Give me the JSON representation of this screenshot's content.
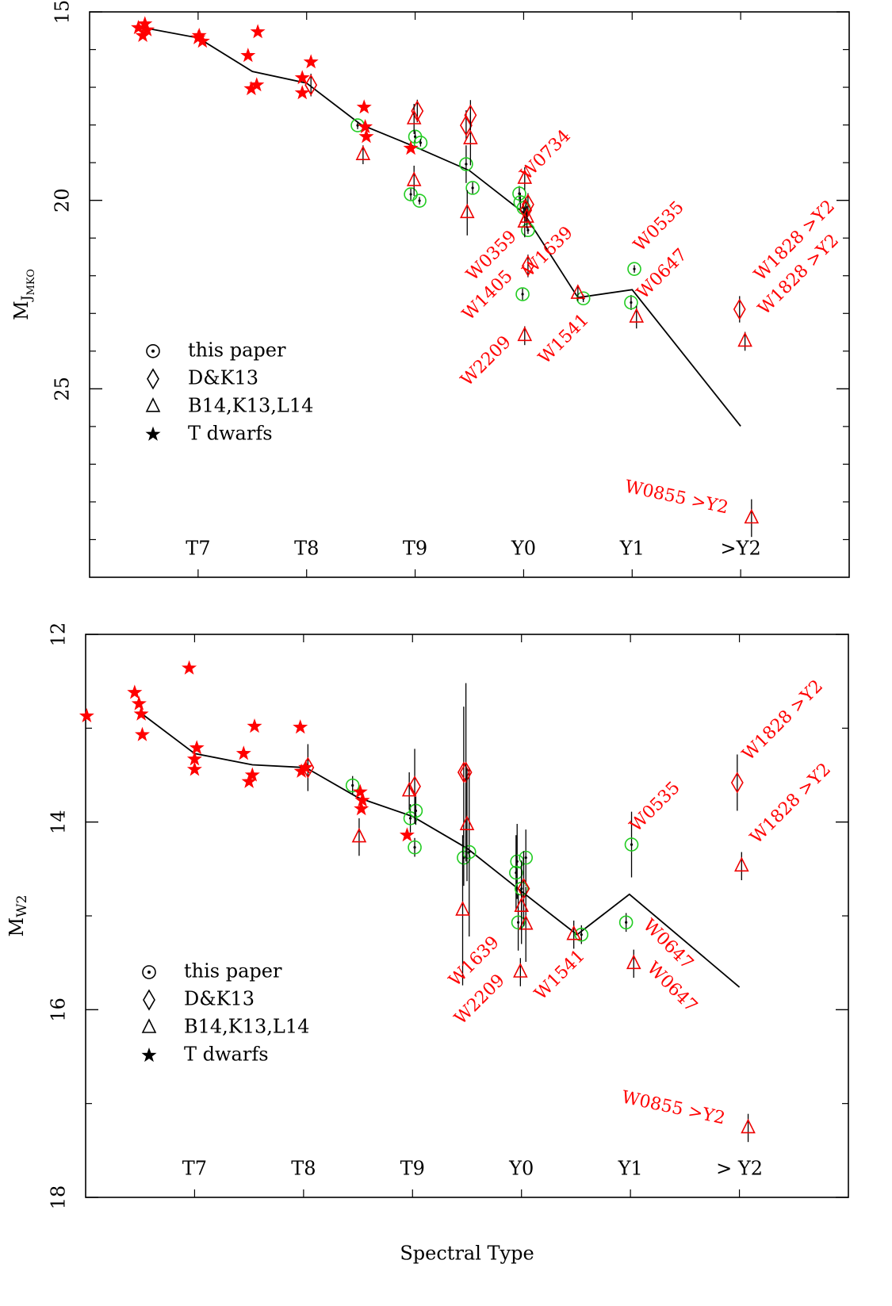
{
  "chart_data": [
    {
      "type": "scatter",
      "y_label": {
        "text": "M",
        "subscript": "J",
        "sub_subscript": "MKO"
      },
      "xlim": [
        6,
        13
      ],
      "ylim": [
        15,
        30
      ],
      "invert_y": true,
      "xticks": [
        {
          "value": 7,
          "label": "T7"
        },
        {
          "value": 8,
          "label": "T8"
        },
        {
          "value": 9,
          "label": "T9"
        },
        {
          "value": 10,
          "label": "Y0"
        },
        {
          "value": 11,
          "label": "Y1"
        },
        {
          "value": 12,
          "label": ">Y2"
        }
      ],
      "yticks": [
        15,
        20,
        25
      ],
      "yticks_minor": [
        16,
        17,
        18,
        19,
        21,
        22,
        23,
        24,
        26,
        27,
        28,
        29
      ],
      "legend": "left",
      "series": [
        {
          "name": "this paper",
          "marker": "circle",
          "color": "#22cc22",
          "x": [
            8.47,
            9.0,
            9.05,
            8.96,
            9.04,
            9.47,
            9.53,
            9.96,
            9.97,
            10.0,
            10.04,
            9.99,
            10.55,
            11.02,
            10.99
          ],
          "values": [
            18.01,
            18.31,
            18.47,
            19.84,
            20.01,
            19.04,
            19.67,
            19.82,
            20.05,
            20.2,
            20.79,
            22.49,
            22.6,
            21.82,
            22.71
          ],
          "errors": [
            0.1,
            0.15,
            0.1,
            0.15,
            0.1,
            0.5,
            0.15,
            0.2,
            0.25,
            0.2,
            0.1,
            0.15,
            0.1,
            0.1,
            0.2
          ]
        },
        {
          "name": "D&K13",
          "marker": "diamond",
          "color": "#ee0000",
          "x": [
            8.04,
            9.02,
            9.47,
            9.51,
            10.04,
            10.02,
            10.04,
            11.99
          ],
          "values": [
            16.94,
            17.63,
            18.01,
            17.74,
            20.11,
            20.26,
            21.74,
            22.89
          ],
          "errors": [
            0.3,
            0.3,
            0.4,
            0.4,
            0.3,
            0.3,
            0.3,
            0.35
          ]
        },
        {
          "name": "B14,K13,L14",
          "marker": "triangle",
          "color": "#ee0000",
          "x": [
            8.52,
            8.99,
            8.99,
            9.48,
            9.51,
            10.01,
            10.01,
            10.03,
            10.01,
            10.5,
            11.04,
            12.04,
            12.1
          ],
          "values": [
            18.79,
            17.84,
            19.48,
            20.33,
            18.37,
            19.42,
            20.58,
            20.45,
            23.59,
            22.47,
            23.1,
            23.74,
            28.43
          ],
          "errors": [
            0.25,
            0.4,
            0.4,
            0.6,
            0.7,
            0.3,
            0.4,
            0.3,
            0.25,
            0.2,
            0.3,
            0.25,
            0.5
          ]
        },
        {
          "name": "T dwarfs",
          "marker": "star",
          "color": "#ff0000",
          "x": [
            6.45,
            6.51,
            6.49,
            6.53,
            7.01,
            7.04,
            7.0,
            7.46,
            7.55,
            7.49,
            7.54,
            8.04,
            7.96,
            7.96,
            8.53,
            8.54,
            8.55,
            8.96
          ],
          "values": [
            15.42,
            15.32,
            15.63,
            15.48,
            15.63,
            15.78,
            15.69,
            16.16,
            15.53,
            17.04,
            16.94,
            16.33,
            16.75,
            17.15,
            17.53,
            18.05,
            18.31,
            18.62
          ]
        }
      ],
      "relation": {
        "color": "#000000",
        "x": [
          6.5,
          7.0,
          7.5,
          8.0,
          8.5,
          9.0,
          9.5,
          10.0,
          10.5,
          11.0,
          12.0
        ],
        "values": [
          15.42,
          15.69,
          16.58,
          16.89,
          17.99,
          18.58,
          19.21,
          20.33,
          22.58,
          22.37,
          25.99
        ]
      },
      "annotations": [
        "W0734",
        "W0359",
        "W1639",
        "W1405",
        "W0535",
        "W0647",
        "W2209",
        "W1541",
        "W1828 >Y2",
        "W1828 >Y2",
        "W0855 >Y2"
      ]
    },
    {
      "type": "scatter",
      "y_label": {
        "text": "M",
        "subscript": "W2"
      },
      "x_label": "Spectral Type",
      "xlim": [
        6,
        13
      ],
      "ylim": [
        12,
        18
      ],
      "invert_y": true,
      "xticks": [
        {
          "value": 7,
          "label": "T7"
        },
        {
          "value": 8,
          "label": "T8"
        },
        {
          "value": 9,
          "label": "T9"
        },
        {
          "value": 10,
          "label": "Y0"
        },
        {
          "value": 11,
          "label": "Y1"
        },
        {
          "value": 12,
          "label": "> Y2"
        }
      ],
      "yticks": [
        12,
        14,
        16,
        18
      ],
      "yticks_minor": [
        13,
        15,
        17
      ],
      "legend": "left",
      "series": [
        {
          "name": "this paper",
          "marker": "circle",
          "color": "#22cc22",
          "x": [
            8.45,
            8.98,
            9.03,
            9.02,
            9.47,
            9.52,
            9.96,
            10.04,
            9.95,
            10.0,
            9.97,
            10.55,
            11.01,
            10.96
          ],
          "values": [
            13.61,
            13.96,
            13.88,
            14.27,
            14.38,
            14.32,
            14.42,
            14.38,
            14.54,
            14.71,
            15.07,
            15.2,
            14.24,
            15.07
          ],
          "errors": [
            0.1,
            0.15,
            0.15,
            0.1,
            0.3,
            0.9,
            0.4,
            0.3,
            0.4,
            0.3,
            0.3,
            0.1,
            0.35,
            0.1
          ]
        },
        {
          "name": "D&K13",
          "marker": "diamond",
          "color": "#ee0000",
          "x": [
            8.04,
            9.02,
            9.47,
            9.49,
            10.02,
            11.98
          ],
          "values": [
            13.42,
            13.62,
            13.47,
            13.47,
            14.71,
            13.58
          ],
          "errors": [
            0.25,
            0.4,
            0.7,
            0.95,
            0.4,
            0.3
          ]
        },
        {
          "name": "B14,K13,L14",
          "marker": "triangle",
          "color": "#ee0000",
          "x": [
            8.51,
            8.97,
            9.5,
            9.46,
            9.99,
            10.04,
            10.0,
            10.48,
            11.03,
            12.02,
            12.08
          ],
          "values": [
            14.16,
            13.67,
            14.03,
            14.94,
            15.6,
            15.09,
            14.9,
            15.2,
            15.51,
            14.47,
            17.26
          ],
          "errors": [
            0.2,
            0.2,
            0.6,
            0.8,
            0.15,
            0.4,
            0.4,
            0.15,
            0.15,
            0.15,
            0.15
          ]
        },
        {
          "name": "T dwarfs",
          "marker": "star",
          "color": "#ff0000",
          "x": [
            6.01,
            6.45,
            6.49,
            6.51,
            6.52,
            6.95,
            7.02,
            7.0,
            7.0,
            7.45,
            7.55,
            7.5,
            7.53,
            7.97,
            7.98,
            8.02,
            8.52,
            8.54,
            8.53,
            8.95
          ],
          "values": [
            12.87,
            12.62,
            12.74,
            12.85,
            13.07,
            12.36,
            13.21,
            13.33,
            13.44,
            13.27,
            12.98,
            13.57,
            13.5,
            12.99,
            13.46,
            13.42,
            13.68,
            13.77,
            13.86,
            14.14
          ]
        }
      ],
      "relation": {
        "color": "#000000",
        "x": [
          6.52,
          7.0,
          7.53,
          8.02,
          8.5,
          9.0,
          9.5,
          9.99,
          10.51,
          10.99,
          12.0
        ],
        "values": [
          12.85,
          13.27,
          13.39,
          13.42,
          13.74,
          13.94,
          14.28,
          14.73,
          15.2,
          14.77,
          15.76
        ]
      },
      "annotations": [
        "W1828 >Y2",
        "W1828 >Y2",
        "W0535",
        "W1639",
        "W2209",
        "W1541",
        "W0647",
        "W0647",
        "W0855 >Y2"
      ]
    }
  ]
}
